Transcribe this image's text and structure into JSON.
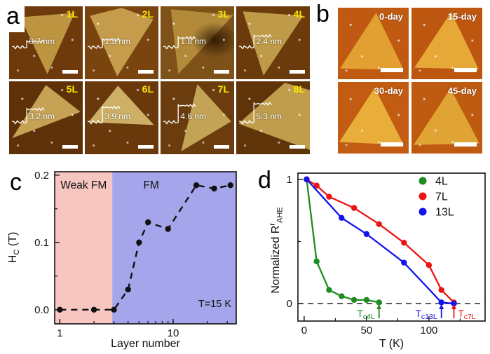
{
  "panels": {
    "a": {
      "letter": "a",
      "images": [
        {
          "label": "1L",
          "height": "0.7 nm"
        },
        {
          "label": "2L",
          "height": "1.3 nm"
        },
        {
          "label": "3L",
          "height": "1.8 nm"
        },
        {
          "label": "4L",
          "height": "2.4 nm"
        },
        {
          "label": "5L",
          "height": "3.2 nm"
        },
        {
          "label": "6L",
          "height": "3.9 nm"
        },
        {
          "label": "7L",
          "height": "4.6 nm"
        },
        {
          "label": "8L",
          "height": "5.3 nm"
        }
      ]
    },
    "b": {
      "letter": "b",
      "images": [
        {
          "label": "0-day"
        },
        {
          "label": "15-day"
        },
        {
          "label": "30-day"
        },
        {
          "label": "45-day"
        }
      ]
    },
    "c": {
      "letter": "c"
    },
    "d": {
      "letter": "d"
    }
  },
  "chart_data": [
    {
      "id": "c",
      "type": "line",
      "marker": "circle",
      "xscale": "log",
      "xlabel": "Layer number",
      "ylabel": {
        "main": "H",
        "sub": "C",
        "rest": " (T)"
      },
      "xlim": [
        0.9,
        36
      ],
      "ylim": [
        -0.021,
        0.205
      ],
      "grid": false,
      "xticks": {
        "major": [
          {
            "v": 1,
            "label": "1"
          },
          {
            "v": 10,
            "label": "10"
          }
        ],
        "minor": [
          2,
          3,
          4,
          5,
          6,
          7,
          8,
          9,
          20,
          30
        ]
      },
      "yticks": {
        "major": [
          {
            "v": 0,
            "label": "0.0"
          },
          {
            "v": 0.1,
            "label": "0.1"
          },
          {
            "v": 0.2,
            "label": "0.2"
          }
        ],
        "minor": [
          0.05,
          0.15
        ]
      },
      "regions": [
        {
          "label": "Weak FM",
          "x_from": 0.9,
          "x_to": 2.9,
          "label_x": 1.62,
          "color": "#f7c6c1"
        },
        {
          "label": "FM",
          "x_from": 2.9,
          "x_to": 36,
          "label_x": 6.4,
          "color": "#a5a5ec"
        }
      ],
      "corner_note": "T=15 K",
      "series": [
        {
          "name": "HC",
          "color": "#111111",
          "line_style": "dashed",
          "x": [
            1,
            2,
            3,
            4,
            5,
            6,
            9,
            16,
            23,
            32
          ],
          "y": [
            0.0,
            0.0,
            0.0,
            0.03,
            0.1,
            0.13,
            0.12,
            0.185,
            0.18,
            0.185
          ]
        }
      ]
    },
    {
      "id": "d",
      "type": "line",
      "marker": "circle",
      "xscale": "linear",
      "xlabel": "T (K)",
      "ylabel": {
        "main": "Normalized R",
        "sup": "r",
        "sub": "AHE"
      },
      "xlim": [
        -5,
        145
      ],
      "ylim": [
        -0.14,
        1.05
      ],
      "grid": false,
      "xticks": {
        "major": [
          {
            "v": 0,
            "label": "0"
          },
          {
            "v": 50,
            "label": "50"
          },
          {
            "v": 100,
            "label": "100"
          }
        ],
        "minor": [
          25,
          75,
          125
        ]
      },
      "yticks": {
        "major": [
          {
            "v": 0,
            "label": "0"
          },
          {
            "v": 1,
            "label": "1"
          }
        ],
        "minor": [
          0.5
        ]
      },
      "zero_dashline": true,
      "legend": {
        "position": "top-right",
        "entries": [
          "4L",
          "7L",
          "13L"
        ]
      },
      "series": [
        {
          "name": "4L",
          "color": "#1f8c1f",
          "x": [
            2,
            10,
            20,
            30,
            40,
            50,
            60
          ],
          "y": [
            1.0,
            0.34,
            0.11,
            0.06,
            0.03,
            0.03,
            0.01
          ]
        },
        {
          "name": "7L",
          "color": "#ee1313",
          "x": [
            2,
            10,
            20,
            40,
            60,
            80,
            100,
            110,
            120
          ],
          "y": [
            1.0,
            0.95,
            0.86,
            0.77,
            0.64,
            0.49,
            0.31,
            0.11,
            0.01
          ]
        },
        {
          "name": "13L",
          "color": "#1313ee",
          "x": [
            2,
            30,
            50,
            80,
            110,
            120
          ],
          "y": [
            1.0,
            0.69,
            0.56,
            0.33,
            0.01,
            0.0
          ]
        }
      ],
      "tc_annotations": [
        {
          "pre": "T",
          "sub": "c4L",
          "x": 60,
          "color": "#1f8c1f",
          "arrow_side": "right"
        },
        {
          "pre": "T",
          "sub": "c13L",
          "x": 110,
          "color": "#1313ee",
          "arrow_side": "right"
        },
        {
          "pre": "T",
          "sub": "c7L",
          "x": 120,
          "color": "#ee1313",
          "arrow_side": "left"
        }
      ]
    }
  ]
}
